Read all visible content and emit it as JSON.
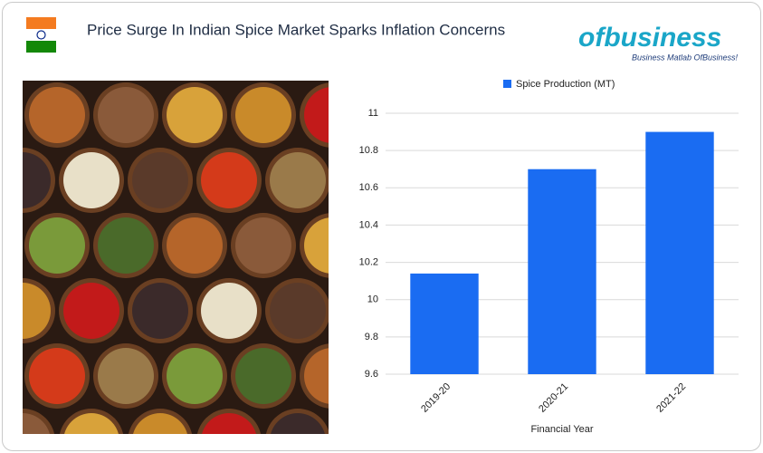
{
  "header": {
    "title": "Price Surge In Indian Spice Market Sparks Inflation Concerns"
  },
  "logo": {
    "brand": "ofbusiness",
    "tagline": "Business Matlab OfBusiness!"
  },
  "chart_data": {
    "type": "bar",
    "xlabel": "Financial Year",
    "categories": [
      "2019-20",
      "2020-21",
      "2021-22"
    ],
    "series": [
      {
        "name": "Spice Production (MT)",
        "color": "#1a6cf2",
        "values": [
          10.14,
          10.7,
          10.9
        ]
      }
    ],
    "ylim": [
      9.6,
      11
    ],
    "yticks": [
      9.6,
      9.8,
      10,
      10.2,
      10.4,
      10.6,
      10.8,
      11
    ],
    "grid": true
  }
}
